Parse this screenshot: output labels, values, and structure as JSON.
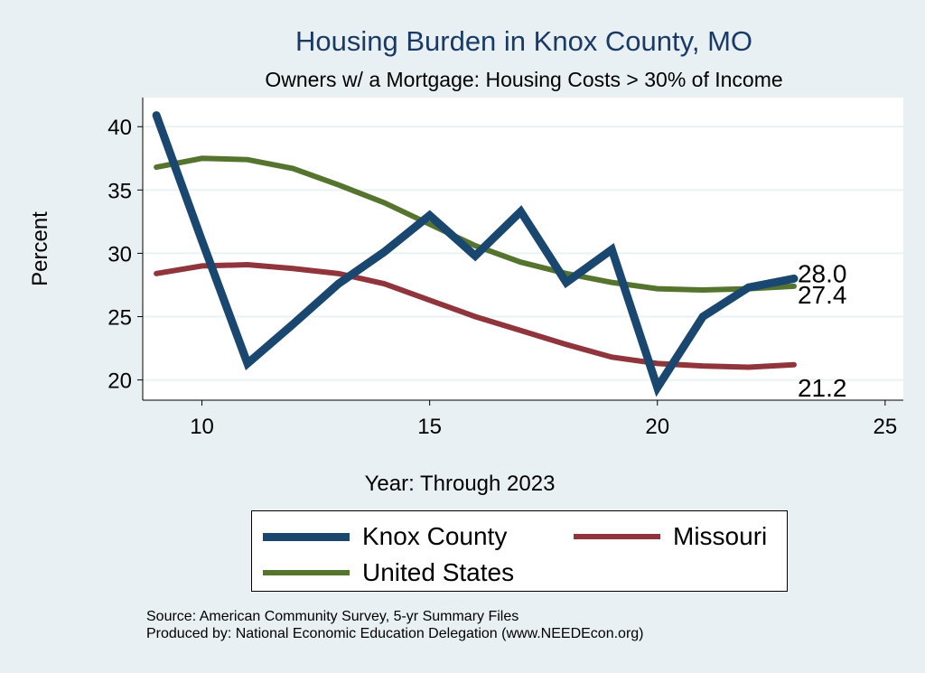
{
  "chart_data": {
    "type": "line",
    "title": "Housing Burden in Knox County, MO",
    "subtitle": "Owners w/ a Mortgage: Housing Costs > 30% of Income",
    "xlabel": "Year: Through 2023",
    "ylabel": "Percent",
    "xlim": [
      8.7,
      25.4
    ],
    "ylim": [
      18.4,
      42.3
    ],
    "xticks": [
      10,
      15,
      20,
      25
    ],
    "yticks": [
      20,
      25,
      30,
      35,
      40
    ],
    "grid": true,
    "legend_placement": "bottom",
    "x": [
      9,
      10,
      11,
      12,
      13,
      14,
      15,
      16,
      17,
      18,
      19,
      20,
      21,
      22,
      23
    ],
    "series": [
      {
        "name": "Knox County",
        "color": "#1a476f",
        "values": [
          40.9,
          31.0,
          21.3,
          24.4,
          27.6,
          30.1,
          33.0,
          29.8,
          33.3,
          27.7,
          30.3,
          19.4,
          25.0,
          27.3,
          28.0
        ],
        "end_label": "28.0"
      },
      {
        "name": "Missouri",
        "color": "#90353b",
        "values": [
          28.4,
          29.0,
          29.1,
          28.8,
          28.4,
          27.6,
          26.3,
          25.0,
          23.9,
          22.8,
          21.8,
          21.3,
          21.1,
          21.0,
          21.2
        ],
        "end_label": "21.2"
      },
      {
        "name": "United States",
        "color": "#55752f",
        "values": [
          36.8,
          37.5,
          37.4,
          36.7,
          35.4,
          34.0,
          32.3,
          30.6,
          29.3,
          28.4,
          27.7,
          27.2,
          27.1,
          27.2,
          27.4
        ],
        "end_label": "27.4"
      }
    ]
  },
  "source": "Source: American Community Survey, 5-yr Summary Files",
  "produced_by": "Produced by: National Economic Education Delegation (www.NEEDEcon.org)"
}
